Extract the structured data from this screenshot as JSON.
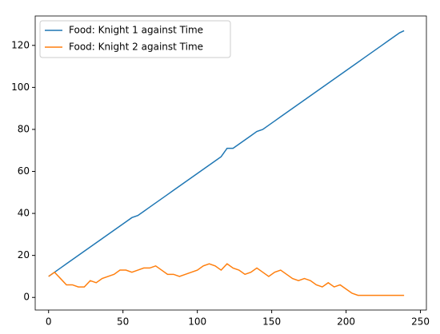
{
  "chart_data": {
    "type": "line",
    "x": [
      0,
      4,
      8,
      12,
      16,
      20,
      24,
      28,
      32,
      36,
      40,
      44,
      48,
      52,
      56,
      60,
      64,
      68,
      72,
      76,
      80,
      84,
      88,
      92,
      96,
      100,
      104,
      108,
      112,
      116,
      120,
      124,
      128,
      132,
      136,
      140,
      144,
      148,
      152,
      156,
      160,
      164,
      168,
      172,
      176,
      180,
      184,
      188,
      192,
      196,
      200,
      204,
      208,
      212,
      216,
      220,
      224,
      228,
      232,
      236,
      239
    ],
    "series": [
      {
        "name": "Food: Knight 1 against Time",
        "color": "#1f77b4",
        "values": [
          10,
          12,
          14,
          16,
          18,
          20,
          22,
          24,
          26,
          28,
          30,
          32,
          34,
          36,
          38,
          39,
          41,
          43,
          45,
          47,
          49,
          51,
          53,
          55,
          57,
          59,
          61,
          63,
          65,
          67,
          71,
          71,
          73,
          75,
          77,
          79,
          80,
          82,
          84,
          86,
          88,
          90,
          92,
          94,
          96,
          98,
          100,
          102,
          104,
          106,
          108,
          110,
          112,
          114,
          116,
          118,
          120,
          122,
          124,
          126,
          127
        ]
      },
      {
        "name": "Food: Knight 2 against Time",
        "color": "#ff7f0e",
        "values": [
          10,
          12,
          9,
          6,
          6,
          5,
          5,
          8,
          7,
          9,
          10,
          11,
          13,
          13,
          12,
          13,
          14,
          14,
          15,
          13,
          11,
          11,
          10,
          11,
          12,
          13,
          15,
          16,
          15,
          13,
          16,
          14,
          13,
          11,
          12,
          14,
          12,
          10,
          12,
          13,
          11,
          9,
          8,
          9,
          8,
          6,
          5,
          7,
          5,
          6,
          4,
          2,
          1,
          1,
          1,
          1,
          1,
          1,
          1,
          1,
          1
        ]
      }
    ],
    "xlim": [
      -9,
      254
    ],
    "ylim": [
      -6,
      134
    ],
    "xticks": [
      0,
      50,
      100,
      150,
      200,
      250
    ],
    "yticks": [
      0,
      20,
      40,
      60,
      80,
      100,
      120
    ],
    "legend": "upper left"
  }
}
